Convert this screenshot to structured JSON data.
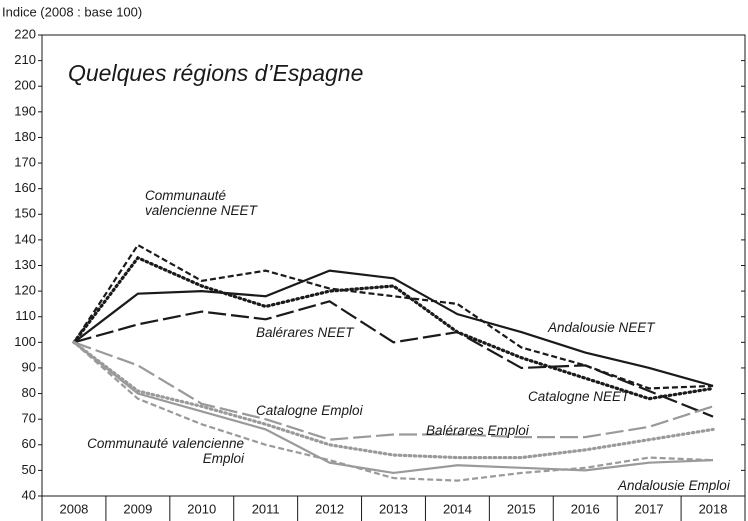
{
  "chart_data": {
    "type": "line",
    "title": "Quelques régions d’Espagne",
    "y_label": "Indice (2008 : base 100)",
    "categories": [
      "2008",
      "2009",
      "2010",
      "2011",
      "2012",
      "2013",
      "2014",
      "2015",
      "2016",
      "2017",
      "2018"
    ],
    "ylim": [
      40,
      220
    ],
    "yticks": [
      40,
      50,
      60,
      70,
      80,
      90,
      100,
      110,
      120,
      130,
      140,
      150,
      160,
      170,
      180,
      190,
      200,
      210,
      220
    ],
    "series": [
      {
        "name": "Andalousie NEET",
        "color": "#1a1a1a",
        "dash": "solid",
        "values": [
          100,
          119,
          120,
          118,
          128,
          125,
          111,
          104,
          96,
          90,
          83
        ]
      },
      {
        "name": "Communauté valencienne NEET",
        "color": "#1a1a1a",
        "dash": "dashed",
        "values": [
          100,
          138,
          124,
          128,
          121,
          118,
          115,
          98,
          91,
          82,
          83
        ]
      },
      {
        "name": "Catalogne NEET",
        "color": "#1a1a1a",
        "dash": "dotted",
        "values": [
          100,
          133,
          122,
          114,
          120,
          122,
          104,
          94,
          86,
          78,
          82
        ]
      },
      {
        "name": "Balérares NEET",
        "color": "#1a1a1a",
        "dash": "longdash",
        "values": [
          100,
          107,
          112,
          109,
          116,
          100,
          104,
          90,
          91,
          81,
          71
        ]
      },
      {
        "name": "Andalousie Emploi",
        "color": "#9a9a9a",
        "dash": "solid",
        "values": [
          100,
          80,
          73,
          66,
          53,
          49,
          52,
          51,
          50,
          53,
          54
        ]
      },
      {
        "name": "Catalogne Emploi",
        "color": "#9a9a9a",
        "dash": "dotted",
        "values": [
          100,
          81,
          75,
          68,
          60,
          56,
          55,
          55,
          58,
          62,
          66
        ]
      },
      {
        "name": "Balérares Emploi",
        "color": "#9a9a9a",
        "dash": "longdash",
        "values": [
          100,
          91,
          76,
          70,
          62,
          64,
          64,
          63,
          63,
          67,
          75
        ]
      },
      {
        "name": "Communauté valencienne Emploi",
        "color": "#9a9a9a",
        "dash": "dashed",
        "values": [
          100,
          78,
          68,
          60,
          54,
          47,
          46,
          49,
          51,
          55,
          54
        ]
      }
    ]
  }
}
